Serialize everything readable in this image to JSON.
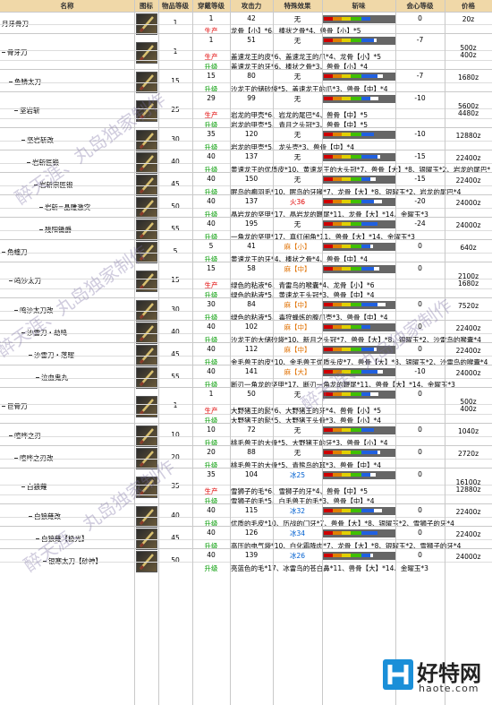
{
  "headers": [
    "名称",
    "图标",
    "物品等级",
    "穿戴等级",
    "攻击力",
    "特殊效果",
    "斩味",
    "会心等级",
    "价格"
  ],
  "tags": {
    "prod": "生产",
    "up": "升级"
  },
  "watermarks": [
    "醉天涯、丸岛独家制作",
    "醉天涯、丸岛独家制作",
    "醉天涯、丸岛独家制作",
    "醉天涯、丸岛独家制作"
  ],
  "logo": {
    "text": "好特网",
    "url": "haote.com"
  },
  "rows": [
    {
      "name": "月牙骨刀",
      "item_lv": "1",
      "wear": "1",
      "atk": "42",
      "effect": "无",
      "crit": "0",
      "price": "20z",
      "subs": [
        {
          "tag": "prod",
          "text": "龙骨【小】*6、棒状之骨*4、兽骨【小】*5"
        }
      ]
    },
    {
      "name": "骨牙刀",
      "item_lv": "1",
      "wear": "1",
      "atk": "51",
      "effect": "无",
      "crit": "-7",
      "price": "500z\n400z",
      "subs": [
        {
          "tag": "prod",
          "text": "盖速龙王的皮*6、盖速龙王的爪*4、龙骨【小】*5"
        },
        {
          "tag": "up",
          "text": "盖速龙王的牙*6、棒状之骨*3、兽骨【小】*4"
        }
      ]
    },
    {
      "name": "鱼鳞太刀",
      "item_lv": "15",
      "wear": "15",
      "atk": "80",
      "effect": "无",
      "crit": "-7",
      "price": "1680z",
      "subs": [
        {
          "tag": "up",
          "text": "沙龙王的储砂袋*5、盖速龙王的爪*3、兽骨【中】*4"
        }
      ]
    },
    {
      "name": "坚岩斩",
      "item_lv": "25",
      "wear": "29",
      "atk": "99",
      "effect": "无",
      "crit": "-10",
      "price": "5600z\n4480z",
      "subs": [
        {
          "tag": "prod",
          "text": "岩龙的甲壳*6、岩龙的尾巴*4、兽骨【中】*5"
        },
        {
          "tag": "up",
          "text": "岩龙的甲壳*5、青月之头冠*3、兽骨【中】*5"
        }
      ]
    },
    {
      "name": "坚岩斩改",
      "item_lv": "30",
      "wear": "35",
      "atk": "120",
      "effect": "无",
      "crit": "-10",
      "price": "12880z",
      "subs": [
        {
          "tag": "up",
          "text": "岩龙的甲壳*5、龙头壳*3、兽骨【中】*4"
        }
      ]
    },
    {
      "name": "岩斩匠锻",
      "item_lv": "40",
      "wear": "40",
      "atk": "137",
      "effect": "无",
      "crit": "-15",
      "price": "22400z",
      "subs": [
        {
          "tag": "up",
          "text": "黄速龙王的优质皮*10、黄速龙王的大头冠*7、兽骨【大】*8、银曜玉*2、岩龙的尾巴*4"
        }
      ]
    },
    {
      "name": "岩斩宗匠锻",
      "item_lv": "45",
      "wear": "40",
      "atk": "150",
      "effect": "无",
      "crit": "-15",
      "price": "22400z",
      "subs": [
        {
          "tag": "up",
          "text": "眠鸟的癫羽毛*10、眠鸟的牙喙*7、龙骨【大】*8、银曜玉*2、岩龙的尾巴*4"
        }
      ]
    },
    {
      "name": "岩斩=晶雕激突",
      "item_lv": "50",
      "wear": "40",
      "atk": "137",
      "effect": "火36",
      "effect_kind": "fire",
      "crit": "-20",
      "price": "24000z",
      "subs": [
        {
          "tag": "up",
          "text": "晶岩龙的坚甲*17、晶岩龙的鞭尾*11、龙骨【大】*14、金曜玉*3"
        }
      ]
    },
    {
      "name": "残阳锄爵",
      "item_lv": "55",
      "wear": "40",
      "atk": "195",
      "effect": "无",
      "crit": "-24",
      "price": "24000z",
      "subs": [
        {
          "tag": "up",
          "text": "一角龙的坚甲*17、真红闹角*11、兽骨【大】*14、金曜玉*3"
        }
      ]
    },
    {
      "name": "角蝰刀",
      "item_lv": "5",
      "wear": "5",
      "atk": "41",
      "effect": "麻【小】",
      "effect_kind": "para",
      "crit": "0",
      "price": "640z",
      "subs": [
        {
          "tag": "up",
          "text": "黄速龙王的牙*4、棒状之骨*4、兽骨【中】*4"
        }
      ]
    },
    {
      "name": "鸣沙太刀",
      "item_lv": "15",
      "wear": "15",
      "atk": "58",
      "effect": "麻【中】",
      "effect_kind": "para",
      "crit": "0",
      "price": "2100z\n1680z",
      "subs": [
        {
          "tag": "prod",
          "text": "绿色的粘液*6、青雷鸟的喉囊*4、龙骨【小】*6"
        },
        {
          "tag": "up",
          "text": "绿色的粘液*5、黄速龙王头冠*3、兽骨【中】*4"
        }
      ]
    },
    {
      "name": "鸣沙太刀改",
      "item_lv": "30",
      "wear": "30",
      "atk": "84",
      "effect": "麻【中】",
      "effect_kind": "para",
      "crit": "0",
      "price": "7520z",
      "subs": [
        {
          "tag": "up",
          "text": "绿色的粘液*5、毒狩蜂炼的腹爪壳*3、兽骨【中】*4"
        }
      ]
    },
    {
      "name": "沙雷刀・劫鸣",
      "item_lv": "40",
      "wear": "40",
      "atk": "102",
      "effect": "麻【中】",
      "effect_kind": "para",
      "crit": "0",
      "price": "22400z",
      "subs": [
        {
          "tag": "up",
          "text": "沙龙王的大储砂袋*10、新月之头冠*7、兽骨【大】*8、银曜玉*2、沙雷鸟的喉囊*4"
        }
      ]
    },
    {
      "name": "沙雷刀・落曜",
      "item_lv": "45",
      "wear": "40",
      "atk": "112",
      "effect": "麻【中】",
      "effect_kind": "para",
      "crit": "0",
      "price": "22400z",
      "subs": [
        {
          "tag": "up",
          "text": "金毛兽王的皮*10、金毛兽王优质头皮*7、兽骨【大】*8、银曜玉*2、沙雷鸟的喉囊*4"
        }
      ]
    },
    {
      "name": "泣血鬼丸",
      "item_lv": "55",
      "wear": "40",
      "atk": "141",
      "effect": "麻【大】",
      "effect_kind": "para",
      "crit": "-10",
      "price": "24000z",
      "subs": [
        {
          "tag": "up",
          "text": "断刃一角龙的坚甲*17、断刃一角龙的鞭尾*11、兽骨【大】*14、金曜玉*3"
        }
      ]
    },
    {
      "name": "巨骨刀",
      "item_lv": "1",
      "wear": "1",
      "atk": "50",
      "effect": "无",
      "crit": "0",
      "price": "500z\n400z",
      "subs": [
        {
          "tag": "prod",
          "text": "大野猪王的髭*6、大野猪王的牙*4、兽骨【小】*5"
        },
        {
          "tag": "up",
          "text": "大野猪王的髭*5、大野猪王头骨*3、兽骨【小】*4"
        }
      ]
    },
    {
      "name": "喧哗之刃",
      "item_lv": "10",
      "wear": "10",
      "atk": "72",
      "effect": "无",
      "crit": "0",
      "price": "1040z",
      "subs": [
        {
          "tag": "up",
          "text": "桃毛兽王的大骨*5、大野猪王的牙*3、兽骨【小】*4"
        }
      ]
    },
    {
      "name": "喧哗之刃改",
      "item_lv": "20",
      "wear": "20",
      "atk": "88",
      "effect": "无",
      "crit": "0",
      "price": "2720z",
      "subs": [
        {
          "tag": "up",
          "text": "桃毛兽王的大骨*5、青熊鸟的耳*3、兽骨【中】*4"
        }
      ]
    },
    {
      "name": "白狼薙",
      "item_lv": "35",
      "wear": "35",
      "atk": "104",
      "effect": "冰25",
      "effect_kind": "ice",
      "crit": "0",
      "price": "16100z\n12880z",
      "subs": [
        {
          "tag": "prod",
          "text": "雪狮子的毛*6、雪狮子的牙*4、兽骨【中】*5"
        },
        {
          "tag": "up",
          "text": "雪狮子的毛*5、白毛兽王的毛*3、兽骨【中】*4"
        }
      ]
    },
    {
      "name": "白狼薙改",
      "item_lv": "40",
      "wear": "40",
      "atk": "115",
      "effect": "冰32",
      "effect_kind": "ice",
      "crit": "0",
      "price": "22400z",
      "subs": [
        {
          "tag": "up",
          "text": "优质的毛皮*10、历战的门牙*7、兽骨【大】*8、银曜玉*2、雪狮子的牙*4"
        }
      ]
    },
    {
      "name": "白狼薙【极光】",
      "item_lv": "45",
      "wear": "40",
      "atk": "126",
      "effect": "冰34",
      "effect_kind": "ice",
      "crit": "0",
      "price": "22400z",
      "subs": [
        {
          "tag": "up",
          "text": "高压的电气袋*10、白化霜降肉*7、龙骨【大】*8、银曜玉*2、雪狮子的牙*4"
        }
      ]
    },
    {
      "name": "银寒太刀【砂神】",
      "item_lv": "50",
      "wear": "40",
      "atk": "139",
      "effect": "冰26",
      "effect_kind": "ice",
      "crit": "0",
      "price": "24000z",
      "subs": [
        {
          "tag": "up",
          "text": "亮蓝色的毛*17、冰雷鸟的苍白鼻*11、兽骨【大】*14、金曜玉*3"
        }
      ]
    }
  ]
}
